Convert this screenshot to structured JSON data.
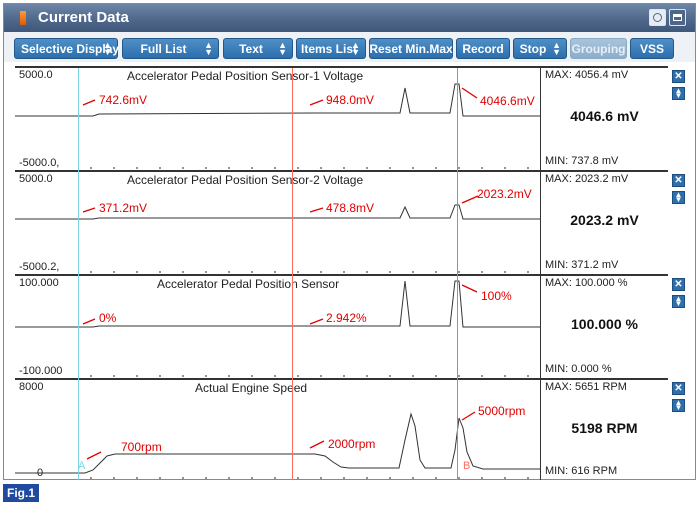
{
  "window": {
    "title": "Current Data",
    "setup_icon": "setup-icon",
    "window_icon": "window-mode-icon"
  },
  "toolbar": {
    "selective_display": "Selective Display",
    "full_list": "Full List",
    "text": "Text",
    "items_list": "Items List",
    "reset_minmax": "Reset Min.Max",
    "record": "Record",
    "stop": "Stop",
    "grouping": "Grouping",
    "vss": "VSS"
  },
  "graphs": [
    {
      "title": "Accelerator Pedal Position Sensor-1 Voltage",
      "y_top": "5000.0",
      "y_bottom": "-5000.0,",
      "max": "MAX: 4056.4 mV",
      "current": "4046.6 mV",
      "min": "MIN: 737.8 mV",
      "annotations": [
        "742.6mV",
        "948.0mV",
        "4046.6mV"
      ]
    },
    {
      "title": "Accelerator Pedal Position Sensor-2 Voltage",
      "y_top": "5000.0",
      "y_bottom": "-5000.2,",
      "max": "MAX: 2023.2 mV",
      "current": "2023.2 mV",
      "min": "MIN: 371.2 mV",
      "annotations": [
        "371.2mV",
        "478.8mV",
        "2023.2mV"
      ]
    },
    {
      "title": "Accelerator Pedal Position Sensor",
      "y_top": "100.000",
      "y_bottom": "-100.000",
      "max": "MAX: 100.000 %",
      "current": "100.000 %",
      "min": "MIN: 0.000 %",
      "annotations": [
        "0%",
        "2.942%",
        "100%"
      ]
    },
    {
      "title": "Actual Engine Speed",
      "y_top": "8000",
      "y_bottom": "0",
      "max": "MAX:  5651 RPM",
      "current": "5198 RPM",
      "min": "MIN:   616 RPM",
      "annotations": [
        "700rpm",
        "2000rpm",
        "5000rpm"
      ]
    }
  ],
  "cursors": {
    "a_label": "A",
    "b_label": "B"
  },
  "figure_label": "Fig.1"
}
